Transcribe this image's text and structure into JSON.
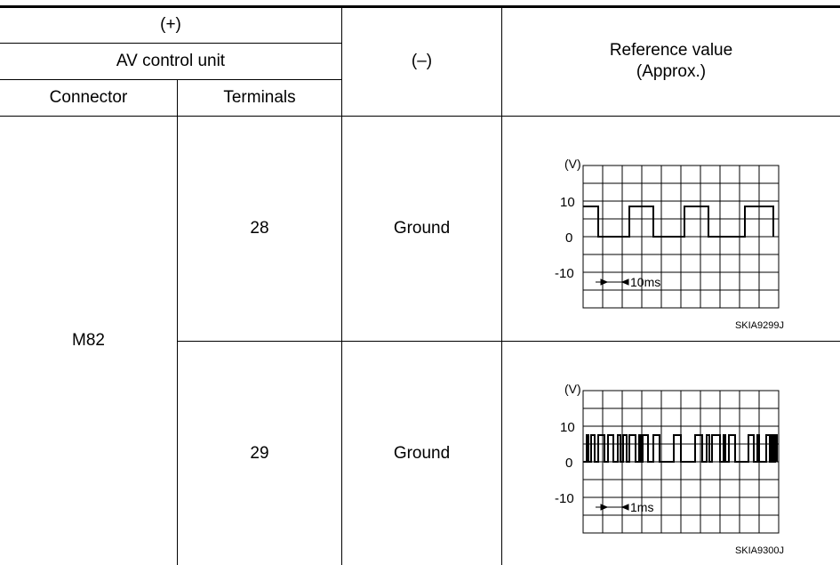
{
  "header": {
    "plus": "(+)",
    "unit": "AV control unit",
    "connector": "Connector",
    "terminals": "Terminals",
    "minus": "(–)",
    "reference_line1": "Reference value",
    "reference_line2": "(Approx.)"
  },
  "rows": [
    {
      "terminal": "28",
      "minus": "Ground",
      "scope": {
        "unit_label": "(V)",
        "ticks": [
          "10",
          "0",
          "-10"
        ],
        "time_label": "10ms",
        "figure_id": "SKIA9299J"
      }
    },
    {
      "terminal": "29",
      "minus": "Ground",
      "scope": {
        "unit_label": "(V)",
        "ticks": [
          "10",
          "0",
          "-10"
        ],
        "time_label": "1ms",
        "figure_id": "SKIA9300J"
      }
    }
  ],
  "connector": "M82"
}
